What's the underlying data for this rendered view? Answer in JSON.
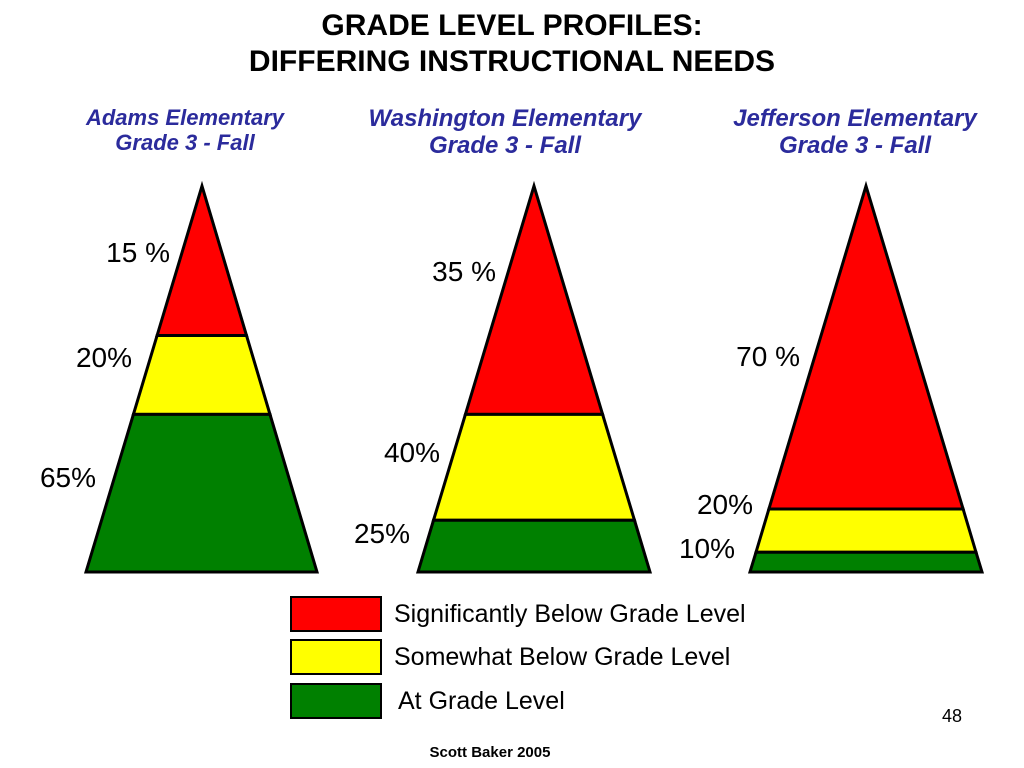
{
  "title": {
    "line1": "GRADE LEVEL PROFILES:",
    "line2": "DIFFERING INSTRUCTIONAL NEEDS"
  },
  "schools": [
    {
      "name": "Adams Elementary",
      "grade": "Grade 3 - Fall",
      "segments": [
        {
          "level": "significantly_below",
          "percent": 15,
          "label": "15 %"
        },
        {
          "level": "somewhat_below",
          "percent": 20,
          "label": "20%"
        },
        {
          "level": "at_grade",
          "percent": 65,
          "label": "65%"
        }
      ]
    },
    {
      "name": "Washington Elementary",
      "grade": "Grade 3 - Fall",
      "segments": [
        {
          "level": "significantly_below",
          "percent": 35,
          "label": "35 %"
        },
        {
          "level": "somewhat_below",
          "percent": 40,
          "label": "40%"
        },
        {
          "level": "at_grade",
          "percent": 25,
          "label": "25%"
        }
      ]
    },
    {
      "name": "Jefferson Elementary",
      "grade": "Grade 3 - Fall",
      "segments": [
        {
          "level": "significantly_below",
          "percent": 70,
          "label": "70 %"
        },
        {
          "level": "somewhat_below",
          "percent": 20,
          "label": "20%"
        },
        {
          "level": "at_grade",
          "percent": 10,
          "label": "10%"
        }
      ]
    }
  ],
  "colors": {
    "significantly_below": "#ff0000",
    "somewhat_below": "#ffff00",
    "at_grade": "#008000",
    "school_title": "#2b2b9c"
  },
  "legend": [
    {
      "level": "significantly_below",
      "label": "Significantly Below Grade Level"
    },
    {
      "level": "somewhat_below",
      "label": "Somewhat Below Grade Level"
    },
    {
      "level": "at_grade",
      "label": "At Grade Level"
    }
  ],
  "page_number": "48",
  "credit": "Scott Baker 2005"
}
